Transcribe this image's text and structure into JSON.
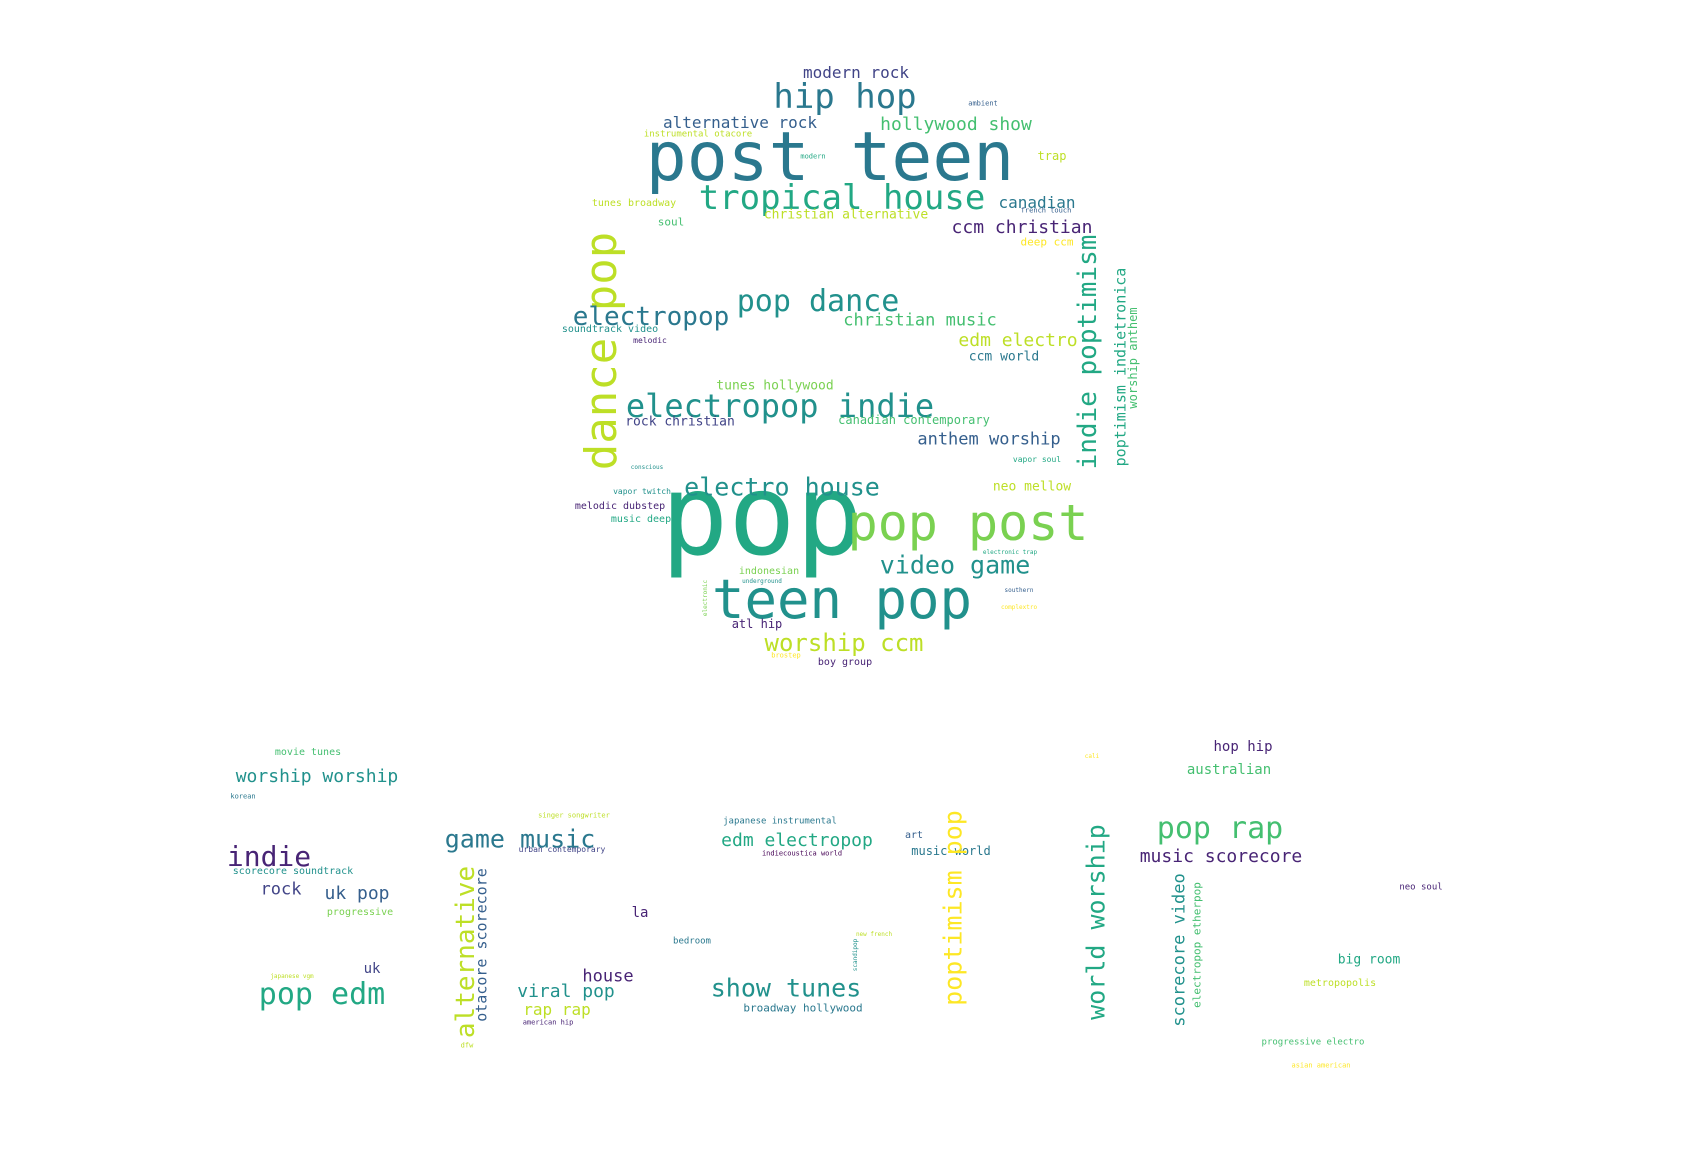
{
  "palette": {
    "dark_purple": "#482475",
    "indigo": "#414487",
    "slate_blue": "#355f8d",
    "steel": "#2a788e",
    "teal": "#21918c",
    "green_teal": "#22a884",
    "green": "#44bf70",
    "light_green": "#7ad151",
    "yellow_green": "#bddf26",
    "yellow": "#fde725",
    "deep_purple": "#440154"
  },
  "words": [
    {
      "text": "post teen",
      "color": "#2a788e",
      "orientation": "horizontal"
    },
    {
      "text": "pop",
      "color": "#22a884",
      "orientation": "horizontal"
    },
    {
      "text": "teen pop",
      "color": "#21918c",
      "orientation": "horizontal"
    },
    {
      "text": "pop post",
      "color": "#7ad151",
      "orientation": "horizontal"
    },
    {
      "text": "dance pop",
      "color": "#bddf26",
      "orientation": "vertical"
    },
    {
      "text": "tropical house",
      "color": "#22a884",
      "orientation": "horizontal"
    },
    {
      "text": "hip hop",
      "color": "#2a788e",
      "orientation": "horizontal"
    },
    {
      "text": "modern rock",
      "color": "#414487",
      "orientation": "horizontal"
    },
    {
      "text": "alternative rock",
      "color": "#355f8d",
      "orientation": "horizontal"
    },
    {
      "text": "hollywood show",
      "color": "#44bf70",
      "orientation": "horizontal"
    },
    {
      "text": "instrumental otacore",
      "color": "#bddf26",
      "orientation": "horizontal"
    },
    {
      "text": "ambient",
      "color": "#355f8d",
      "orientation": "horizontal"
    },
    {
      "text": "modern",
      "color": "#22a884",
      "orientation": "horizontal"
    },
    {
      "text": "trap",
      "color": "#bddf26",
      "orientation": "horizontal"
    },
    {
      "text": "tunes broadway",
      "color": "#bddf26",
      "orientation": "horizontal"
    },
    {
      "text": "canadian",
      "color": "#2a788e",
      "orientation": "horizontal"
    },
    {
      "text": "french touch",
      "color": "#355f8d",
      "orientation": "horizontal"
    },
    {
      "text": "christian alternative",
      "color": "#bddf26",
      "orientation": "horizontal"
    },
    {
      "text": "soul",
      "color": "#44bf70",
      "orientation": "horizontal"
    },
    {
      "text": "ccm christian",
      "color": "#482475",
      "orientation": "horizontal"
    },
    {
      "text": "deep ccm",
      "color": "#fde725",
      "orientation": "horizontal"
    },
    {
      "text": "indie poptimism",
      "color": "#22a884",
      "orientation": "vertical"
    },
    {
      "text": "poptimism indietronica",
      "color": "#22a884",
      "orientation": "vertical"
    },
    {
      "text": "worship anthem",
      "color": "#44bf70",
      "orientation": "vertical"
    },
    {
      "text": "pop dance",
      "color": "#21918c",
      "orientation": "horizontal"
    },
    {
      "text": "electropop",
      "color": "#2a788e",
      "orientation": "horizontal"
    },
    {
      "text": "christian music",
      "color": "#44bf70",
      "orientation": "horizontal"
    },
    {
      "text": "soundtrack video",
      "color": "#21918c",
      "orientation": "horizontal"
    },
    {
      "text": "melodic",
      "color": "#482475",
      "orientation": "horizontal"
    },
    {
      "text": "edm electro",
      "color": "#bddf26",
      "orientation": "horizontal"
    },
    {
      "text": "ccm world",
      "color": "#2a788e",
      "orientation": "horizontal"
    },
    {
      "text": "tunes hollywood",
      "color": "#7ad151",
      "orientation": "horizontal"
    },
    {
      "text": "electropop indie",
      "color": "#21918c",
      "orientation": "horizontal"
    },
    {
      "text": "rock christian",
      "color": "#414487",
      "orientation": "horizontal"
    },
    {
      "text": "canadian contemporary",
      "color": "#44bf70",
      "orientation": "horizontal"
    },
    {
      "text": "anthem worship",
      "color": "#355f8d",
      "orientation": "horizontal"
    },
    {
      "text": "vapor soul",
      "color": "#22a884",
      "orientation": "horizontal"
    },
    {
      "text": "conscious",
      "color": "#21918c",
      "orientation": "horizontal"
    },
    {
      "text": "electro house",
      "color": "#21918c",
      "orientation": "horizontal"
    },
    {
      "text": "neo mellow",
      "color": "#bddf26",
      "orientation": "horizontal"
    },
    {
      "text": "vapor twitch",
      "color": "#21918c",
      "orientation": "horizontal"
    },
    {
      "text": "melodic dubstep",
      "color": "#482475",
      "orientation": "horizontal"
    },
    {
      "text": "music deep",
      "color": "#22a884",
      "orientation": "horizontal"
    },
    {
      "text": "electronic trap",
      "color": "#22a884",
      "orientation": "horizontal"
    },
    {
      "text": "video game",
      "color": "#21918c",
      "orientation": "horizontal"
    },
    {
      "text": "indonesian",
      "color": "#7ad151",
      "orientation": "horizontal"
    },
    {
      "text": "underground",
      "color": "#21918c",
      "orientation": "horizontal"
    },
    {
      "text": "electronic",
      "color": "#7ad151",
      "orientation": "vertical"
    },
    {
      "text": "southern",
      "color": "#355f8d",
      "orientation": "horizontal"
    },
    {
      "text": "complextro",
      "color": "#fde725",
      "orientation": "horizontal"
    },
    {
      "text": "atl hip",
      "color": "#482475",
      "orientation": "horizontal"
    },
    {
      "text": "worship ccm",
      "color": "#bddf26",
      "orientation": "horizontal"
    },
    {
      "text": "brostep",
      "color": "#fde725",
      "orientation": "horizontal"
    },
    {
      "text": "boy group",
      "color": "#482475",
      "orientation": "horizontal"
    },
    {
      "text": "movie tunes",
      "color": "#44bf70",
      "orientation": "horizontal"
    },
    {
      "text": "worship worship",
      "color": "#21918c",
      "orientation": "horizontal"
    },
    {
      "text": "korean",
      "color": "#2a788e",
      "orientation": "horizontal"
    },
    {
      "text": "indie",
      "color": "#482475",
      "orientation": "horizontal"
    },
    {
      "text": "scorecore soundtrack",
      "color": "#21918c",
      "orientation": "horizontal"
    },
    {
      "text": "rock",
      "color": "#414487",
      "orientation": "horizontal"
    },
    {
      "text": "uk pop",
      "color": "#355f8d",
      "orientation": "horizontal"
    },
    {
      "text": "progressive",
      "color": "#7ad151",
      "orientation": "horizontal"
    },
    {
      "text": "japanese vgm",
      "color": "#bddf26",
      "orientation": "horizontal"
    },
    {
      "text": "uk",
      "color": "#414487",
      "orientation": "horizontal"
    },
    {
      "text": "pop edm",
      "color": "#22a884",
      "orientation": "horizontal"
    },
    {
      "text": "singer songwriter",
      "color": "#bddf26",
      "orientation": "horizontal"
    },
    {
      "text": "game music",
      "color": "#2a788e",
      "orientation": "horizontal"
    },
    {
      "text": "urban contemporary",
      "color": "#414487",
      "orientation": "horizontal"
    },
    {
      "text": "alternative",
      "color": "#bddf26",
      "orientation": "vertical"
    },
    {
      "text": "otacore scorecore",
      "color": "#355f8d",
      "orientation": "vertical"
    },
    {
      "text": "dfw",
      "color": "#bddf26",
      "orientation": "horizontal"
    },
    {
      "text": "la",
      "color": "#482475",
      "orientation": "horizontal"
    },
    {
      "text": "house",
      "color": "#482475",
      "orientation": "horizontal"
    },
    {
      "text": "viral pop",
      "color": "#21918c",
      "orientation": "horizontal"
    },
    {
      "text": "rap rap",
      "color": "#bddf26",
      "orientation": "horizontal"
    },
    {
      "text": "american hip",
      "color": "#482475",
      "orientation": "horizontal"
    },
    {
      "text": "japanese instrumental",
      "color": "#2a788e",
      "orientation": "horizontal"
    },
    {
      "text": "edm electropop",
      "color": "#22a884",
      "orientation": "horizontal"
    },
    {
      "text": "indiecoustica world",
      "color": "#440154",
      "orientation": "horizontal"
    },
    {
      "text": "art",
      "color": "#355f8d",
      "orientation": "horizontal"
    },
    {
      "text": "music world",
      "color": "#2a788e",
      "orientation": "horizontal"
    },
    {
      "text": "bedroom",
      "color": "#2a788e",
      "orientation": "horizontal"
    },
    {
      "text": "new french",
      "color": "#bddf26",
      "orientation": "horizontal"
    },
    {
      "text": "scandipop",
      "color": "#21918c",
      "orientation": "vertical"
    },
    {
      "text": "show tunes",
      "color": "#21918c",
      "orientation": "horizontal"
    },
    {
      "text": "broadway hollywood",
      "color": "#2a788e",
      "orientation": "horizontal"
    },
    {
      "text": "poptimism pop",
      "color": "#fde725",
      "orientation": "vertical"
    },
    {
      "text": "world worship",
      "color": "#22a884",
      "orientation": "vertical"
    },
    {
      "text": "scorecore video",
      "color": "#21918c",
      "orientation": "vertical"
    },
    {
      "text": "electropop etherpop",
      "color": "#44bf70",
      "orientation": "vertical"
    },
    {
      "text": "cali",
      "color": "#fde725",
      "orientation": "horizontal"
    },
    {
      "text": "hop hip",
      "color": "#482475",
      "orientation": "horizontal"
    },
    {
      "text": "australian",
      "color": "#44bf70",
      "orientation": "horizontal"
    },
    {
      "text": "pop rap",
      "color": "#44bf70",
      "orientation": "horizontal"
    },
    {
      "text": "music scorecore",
      "color": "#482475",
      "orientation": "horizontal"
    },
    {
      "text": "neo soul",
      "color": "#482475",
      "orientation": "horizontal"
    },
    {
      "text": "big room",
      "color": "#22a884",
      "orientation": "horizontal"
    },
    {
      "text": "metropopolis",
      "color": "#bddf26",
      "orientation": "horizontal"
    },
    {
      "text": "progressive electro",
      "color": "#44bf70",
      "orientation": "horizontal"
    },
    {
      "text": "asian american",
      "color": "#fde725",
      "orientation": "horizontal"
    }
  ]
}
